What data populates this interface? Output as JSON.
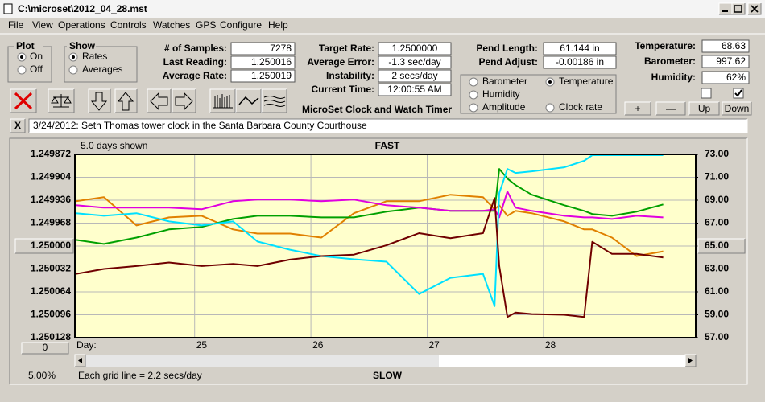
{
  "window": {
    "title": "C:\\microset\\2012_04_28.mst"
  },
  "menu": [
    "File",
    "View",
    "Operations",
    "Controls",
    "Watches",
    "GPS",
    "Configure",
    "Help"
  ],
  "plot_group": {
    "title": "Plot",
    "options": [
      "On",
      "Off"
    ],
    "selected": 0
  },
  "show_group": {
    "title": "Show",
    "options": [
      "Rates",
      "Averages"
    ],
    "selected": 0
  },
  "field_groups": [
    [
      {
        "label": "# of Samples:",
        "value": "7278"
      },
      {
        "label": "Last Reading:",
        "value": "1.250016"
      },
      {
        "label": "Average Rate:",
        "value": "1.250019"
      }
    ],
    [
      {
        "label": "Target Rate:",
        "value": "1.2500000"
      },
      {
        "label": "Average Error:",
        "value": "-1.3 sec/day"
      },
      {
        "label": "Instability:",
        "value": "2 secs/day"
      },
      {
        "label": "Current Time:",
        "value": "12:00:55 AM"
      }
    ],
    [
      {
        "label": "Pend Length:",
        "value": "61.144 in"
      },
      {
        "label": "Pend Adjust:",
        "value": "-0.00186 in"
      }
    ],
    [
      {
        "label": "Temperature:",
        "value": "68.63"
      },
      {
        "label": "Barometer:",
        "value": "997.62"
      },
      {
        "label": "Humidity:",
        "value": "62%"
      }
    ]
  ],
  "app_label": "MicroSet Clock and Watch Timer",
  "buttons": [
    "+",
    "—",
    "Up",
    "Down"
  ],
  "checkboxes": [
    false,
    true
  ],
  "note_button": "X",
  "note": "3/24/2012: Seth Thomas tower clock in the Santa Barbara County Courthouse",
  "chart_data": {
    "type": "line",
    "days_shown": "5.0 days shown",
    "top_label": "FAST",
    "bottom_label": "SLOW",
    "x_label": "Day:",
    "offset_button": "0",
    "zoom": "5.00%",
    "grid_note": "Each grid line = 2.2 secs/day",
    "legend_selected": 1,
    "grid": true,
    "xlim": [
      23.97,
      29.31
    ],
    "xticks": [
      25,
      26,
      27,
      28
    ],
    "ylim": [
      1.250128,
      1.249872
    ],
    "yticks": [
      1.249872,
      1.249904,
      1.249936,
      1.249968,
      {
        "value": 1.25,
        "label": "1.250000"
      },
      1.250032,
      1.250064,
      1.250096,
      1.250128
    ],
    "y2lim": [
      57,
      73
    ],
    "y2ticks": [
      {
        "value": 73,
        "label": "73.00"
      },
      {
        "value": 71,
        "label": "71.00"
      },
      {
        "value": 69,
        "label": "69.00"
      },
      {
        "value": 67,
        "label": "67.00"
      },
      {
        "value": 65,
        "label": "65.00"
      },
      {
        "value": 63,
        "label": "63.00"
      },
      {
        "value": 61,
        "label": "61.00"
      },
      {
        "value": 59,
        "label": "59.00"
      },
      {
        "value": 57,
        "label": "57.00"
      }
    ],
    "x": [
      23.98,
      24.22,
      24.5,
      24.78,
      25.06,
      25.33,
      25.54,
      25.82,
      26.09,
      26.37,
      26.65,
      26.93,
      27.2,
      27.48,
      27.58,
      27.62,
      27.69,
      27.76,
      27.9,
      28.18,
      28.35,
      28.42,
      28.59,
      28.8,
      29.03
    ],
    "series": [
      {
        "name": "Barometer",
        "color": "#e08000",
        "axis": "y2",
        "values": [
          68.91,
          69.27,
          66.8,
          67.5,
          67.64,
          66.45,
          66.09,
          66.09,
          65.74,
          67.86,
          68.91,
          68.91,
          69.48,
          69.27,
          68.21,
          68.56,
          67.64,
          68.07,
          67.86,
          67.15,
          66.45,
          66.45,
          65.74,
          64.12,
          64.54
        ]
      },
      {
        "name": "Temperature",
        "color": "#00a000",
        "axis": "y2",
        "values": [
          65.53,
          65.18,
          65.74,
          66.45,
          66.66,
          67.36,
          67.64,
          67.64,
          67.5,
          67.5,
          68.0,
          68.35,
          68.07,
          68.07,
          68.07,
          71.73,
          70.89,
          70.32,
          69.48,
          68.56,
          68.07,
          67.79,
          67.64,
          68.0,
          68.63
        ]
      },
      {
        "name": "Humidity",
        "color": "#e000e0",
        "axis": "y2",
        "values": [
          68.56,
          68.35,
          68.35,
          68.35,
          68.21,
          68.91,
          69.05,
          69.05,
          68.91,
          69.05,
          68.56,
          68.35,
          68.07,
          68.07,
          68.21,
          67.5,
          69.76,
          68.35,
          68.07,
          67.64,
          67.5,
          67.5,
          67.36,
          67.64,
          67.5
        ]
      },
      {
        "name": "Amplitude",
        "color": "#00e0ff",
        "axis": "y2",
        "values": [
          67.86,
          67.64,
          67.86,
          67.15,
          66.8,
          67.15,
          65.39,
          64.68,
          64.12,
          63.84,
          63.63,
          60.81,
          62.22,
          62.57,
          59.75,
          69.62,
          71.73,
          71.38,
          71.52,
          71.87,
          72.44,
          72.93,
          72.93,
          72.93,
          72.93
        ]
      },
      {
        "name": "Clock rate",
        "color": "#700000",
        "values": [
          1.250039,
          1.250032,
          1.250028,
          1.250023,
          1.250028,
          1.250025,
          1.250028,
          1.250019,
          1.250014,
          1.250012,
          1.249999,
          1.249982,
          1.249989,
          1.249982,
          1.249933,
          1.250028,
          1.250099,
          1.250093,
          1.250095,
          1.250096,
          1.250099,
          1.249994,
          1.250011,
          1.250011,
          1.250016
        ]
      }
    ]
  }
}
